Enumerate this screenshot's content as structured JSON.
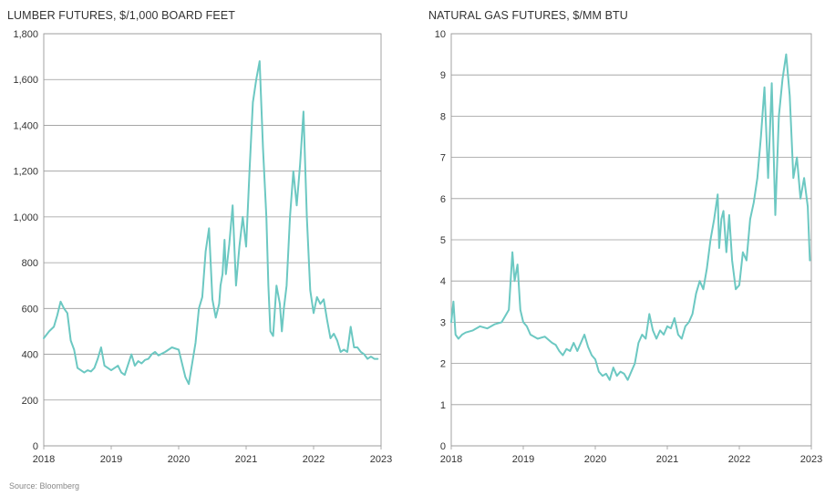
{
  "source_note": "Source: Bloomberg",
  "colors": {
    "series": "#6cc8c2",
    "grid": "#9a9a9a",
    "frame": "#9a9a9a"
  },
  "chart_data": [
    {
      "type": "line",
      "title": "LUMBER FUTURES, $/1,000 BOARD FEET",
      "xlabel": "",
      "ylabel": "",
      "xlim": [
        2018,
        2023
      ],
      "ylim": [
        0,
        1800
      ],
      "x_ticks": [
        2018,
        2019,
        2020,
        2021,
        2022,
        2023
      ],
      "x_tick_labels": [
        "2018",
        "2019",
        "2020",
        "2021",
        "2022",
        "2023"
      ],
      "y_ticks": [
        0,
        200,
        400,
        600,
        800,
        1000,
        1200,
        1400,
        1600,
        1800
      ],
      "y_tick_labels": [
        "0",
        "200",
        "400",
        "600",
        "800",
        "1,000",
        "1,200",
        "1,400",
        "1,600",
        "1,800"
      ],
      "series": [
        {
          "name": "Lumber futures",
          "x": [
            2018.0,
            2018.08,
            2018.15,
            2018.2,
            2018.25,
            2018.3,
            2018.35,
            2018.4,
            2018.45,
            2018.5,
            2018.55,
            2018.6,
            2018.65,
            2018.7,
            2018.75,
            2018.8,
            2018.85,
            2018.9,
            2019.0,
            2019.05,
            2019.1,
            2019.15,
            2019.2,
            2019.3,
            2019.35,
            2019.4,
            2019.45,
            2019.5,
            2019.55,
            2019.6,
            2019.65,
            2019.7,
            2019.8,
            2019.85,
            2019.9,
            2020.0,
            2020.1,
            2020.15,
            2020.2,
            2020.25,
            2020.3,
            2020.35,
            2020.4,
            2020.45,
            2020.5,
            2020.55,
            2020.6,
            2020.62,
            2020.65,
            2020.68,
            2020.7,
            2020.75,
            2020.8,
            2020.85,
            2020.9,
            2020.95,
            2021.0,
            2021.05,
            2021.1,
            2021.15,
            2021.2,
            2021.25,
            2021.3,
            2021.33,
            2021.36,
            2021.4,
            2021.45,
            2021.5,
            2021.53,
            2021.56,
            2021.6,
            2021.65,
            2021.7,
            2021.75,
            2021.8,
            2021.85,
            2021.9,
            2021.95,
            2022.0,
            2022.05,
            2022.1,
            2022.15,
            2022.2,
            2022.25,
            2022.3,
            2022.35,
            2022.4,
            2022.45,
            2022.5,
            2022.55,
            2022.6,
            2022.65,
            2022.7,
            2022.75,
            2022.8,
            2022.85,
            2022.9,
            2022.95
          ],
          "y": [
            470,
            500,
            520,
            570,
            630,
            600,
            580,
            460,
            420,
            340,
            330,
            320,
            330,
            325,
            340,
            380,
            430,
            350,
            330,
            340,
            350,
            320,
            310,
            400,
            350,
            370,
            360,
            375,
            380,
            400,
            410,
            395,
            410,
            420,
            430,
            420,
            300,
            270,
            360,
            450,
            600,
            650,
            850,
            950,
            640,
            560,
            620,
            700,
            750,
            900,
            750,
            880,
            1050,
            700,
            870,
            1000,
            870,
            1200,
            1500,
            1600,
            1680,
            1300,
            1000,
            700,
            500,
            480,
            700,
            620,
            500,
            600,
            700,
            1000,
            1200,
            1050,
            1230,
            1460,
            1000,
            680,
            580,
            650,
            620,
            640,
            550,
            470,
            490,
            460,
            410,
            420,
            410,
            520,
            430,
            430,
            410,
            400,
            380,
            390,
            380,
            380
          ]
        }
      ]
    },
    {
      "type": "line",
      "title": "NATURAL GAS FUTURES, $/MM BTU",
      "xlabel": "",
      "ylabel": "",
      "xlim": [
        2018,
        2023
      ],
      "ylim": [
        0,
        10
      ],
      "x_ticks": [
        2018,
        2019,
        2020,
        2021,
        2022,
        2023
      ],
      "x_tick_labels": [
        "2018",
        "2019",
        "2020",
        "2021",
        "2022",
        "2023"
      ],
      "y_ticks": [
        0,
        1,
        2,
        3,
        4,
        5,
        6,
        7,
        8,
        9,
        10
      ],
      "y_tick_labels": [
        "0",
        "1",
        "2",
        "3",
        "4",
        "5",
        "6",
        "7",
        "8",
        "9",
        "10"
      ],
      "series": [
        {
          "name": "Natural gas futures",
          "x": [
            2018.0,
            2018.03,
            2018.06,
            2018.1,
            2018.15,
            2018.2,
            2018.3,
            2018.4,
            2018.5,
            2018.6,
            2018.7,
            2018.8,
            2018.85,
            2018.88,
            2018.92,
            2018.96,
            2019.0,
            2019.05,
            2019.1,
            2019.2,
            2019.3,
            2019.4,
            2019.45,
            2019.5,
            2019.55,
            2019.6,
            2019.65,
            2019.7,
            2019.75,
            2019.8,
            2019.85,
            2019.9,
            2019.95,
            2020.0,
            2020.05,
            2020.1,
            2020.15,
            2020.2,
            2020.25,
            2020.3,
            2020.35,
            2020.4,
            2020.45,
            2020.5,
            2020.55,
            2020.6,
            2020.65,
            2020.7,
            2020.75,
            2020.8,
            2020.85,
            2020.9,
            2020.95,
            2021.0,
            2021.05,
            2021.1,
            2021.15,
            2021.2,
            2021.25,
            2021.3,
            2021.35,
            2021.4,
            2021.45,
            2021.5,
            2021.55,
            2021.6,
            2021.65,
            2021.7,
            2021.72,
            2021.75,
            2021.78,
            2021.82,
            2021.86,
            2021.9,
            2021.95,
            2022.0,
            2022.05,
            2022.1,
            2022.15,
            2022.2,
            2022.25,
            2022.3,
            2022.35,
            2022.4,
            2022.45,
            2022.5,
            2022.55,
            2022.6,
            2022.65,
            2022.7,
            2022.75,
            2022.8,
            2022.85,
            2022.9,
            2022.95,
            2022.98
          ],
          "y": [
            3.0,
            3.5,
            2.7,
            2.6,
            2.7,
            2.75,
            2.8,
            2.9,
            2.85,
            2.95,
            3.0,
            3.3,
            4.7,
            4.0,
            4.4,
            3.3,
            3.0,
            2.9,
            2.7,
            2.6,
            2.65,
            2.5,
            2.45,
            2.3,
            2.2,
            2.35,
            2.3,
            2.5,
            2.3,
            2.5,
            2.7,
            2.4,
            2.2,
            2.1,
            1.8,
            1.7,
            1.75,
            1.6,
            1.9,
            1.7,
            1.8,
            1.75,
            1.6,
            1.8,
            2.0,
            2.5,
            2.7,
            2.6,
            3.2,
            2.8,
            2.6,
            2.8,
            2.7,
            2.9,
            2.85,
            3.1,
            2.7,
            2.6,
            2.9,
            3.0,
            3.2,
            3.7,
            4.0,
            3.8,
            4.3,
            5.0,
            5.5,
            6.1,
            4.8,
            5.5,
            5.7,
            4.7,
            5.6,
            4.5,
            3.8,
            3.9,
            4.7,
            4.5,
            5.5,
            5.9,
            6.5,
            7.5,
            8.7,
            6.5,
            8.8,
            5.6,
            8.0,
            8.9,
            9.5,
            8.5,
            6.5,
            7.0,
            6.0,
            6.5,
            5.8,
            4.5
          ]
        }
      ]
    }
  ]
}
